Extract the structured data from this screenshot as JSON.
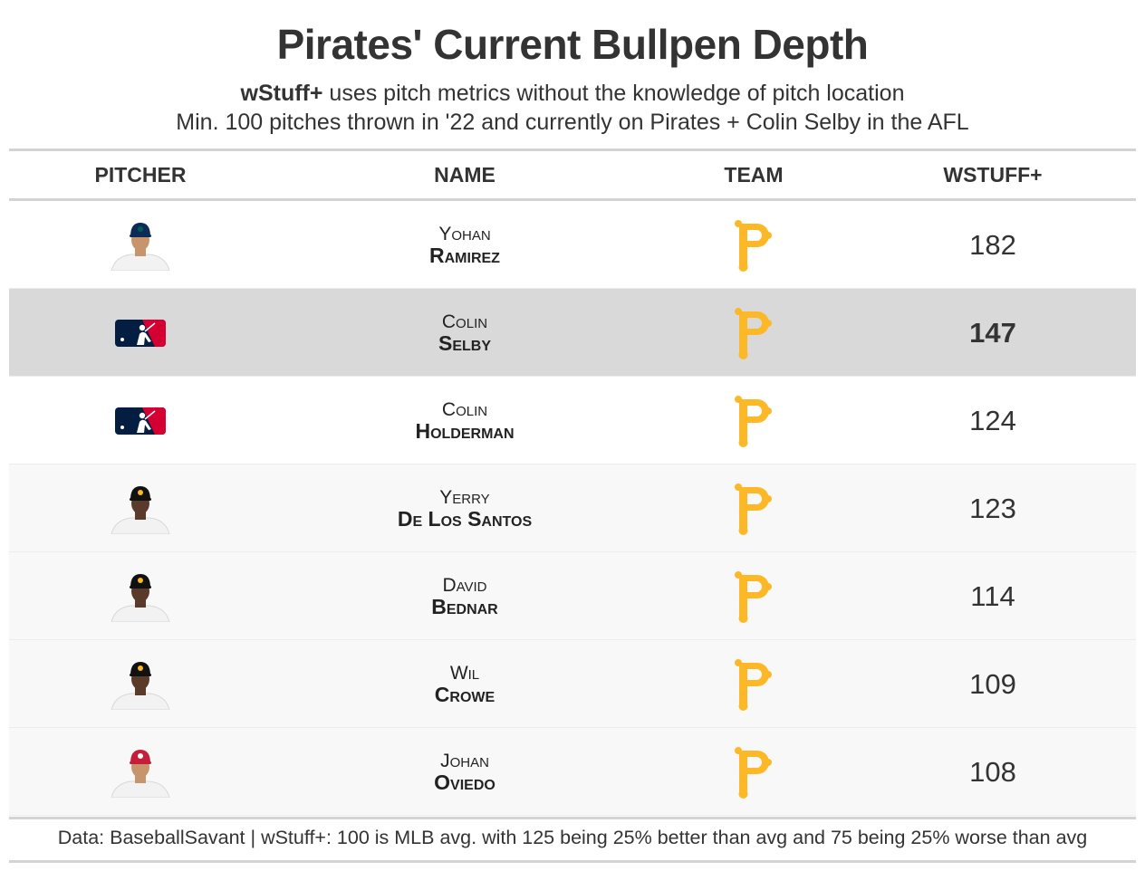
{
  "title": "Pirates' Current Bullpen Depth",
  "subtitle_bold": "wStuff+",
  "subtitle_rest": " uses pitch metrics without the knowledge of pitch location",
  "subtitle2": "Min. 100 pitches thrown in '22 and currently on Pirates + Colin Selby in the AFL",
  "columns": {
    "pitcher": "PITCHER",
    "name": "NAME",
    "team": "TEAM",
    "wstuff": "WSTUFF+"
  },
  "colors": {
    "pirates_gold": "#FDB827",
    "highlight_row": "#d9d9d9",
    "stripe_row": "#f8f8f8",
    "mlb_blue": "#041e42",
    "mlb_red": "#d50032"
  },
  "chart_data": {
    "type": "table",
    "rows": [
      {
        "first": "Yohan",
        "last": "Ramirez",
        "team_icon": "pirates-p-logo",
        "photo": "headshot-mariners-cap",
        "wstuff": 182,
        "highlight": false
      },
      {
        "first": "Colin",
        "last": "Selby",
        "team_icon": "pirates-p-logo",
        "photo": "mlb-logo",
        "wstuff": 147,
        "highlight": true
      },
      {
        "first": "Colin",
        "last": "Holderman",
        "team_icon": "pirates-p-logo",
        "photo": "mlb-logo",
        "wstuff": 124,
        "highlight": false
      },
      {
        "first": "Yerry",
        "last": "De Los Santos",
        "team_icon": "pirates-p-logo",
        "photo": "headshot-pirates-cap",
        "wstuff": 123,
        "highlight": false
      },
      {
        "first": "David",
        "last": "Bednar",
        "team_icon": "pirates-p-logo",
        "photo": "headshot-pirates-cap",
        "wstuff": 114,
        "highlight": false
      },
      {
        "first": "Wil",
        "last": "Crowe",
        "team_icon": "pirates-p-logo",
        "photo": "headshot-pirates-cap",
        "wstuff": 109,
        "highlight": false
      },
      {
        "first": "Johan",
        "last": "Oviedo",
        "team_icon": "pirates-p-logo",
        "photo": "headshot-cardinals-cap",
        "wstuff": 108,
        "highlight": false
      }
    ]
  },
  "footer": "Data: BaseballSavant | wStuff+: 100 is MLB avg. with 125 being 25% better than avg and 75 being 25% worse than avg"
}
